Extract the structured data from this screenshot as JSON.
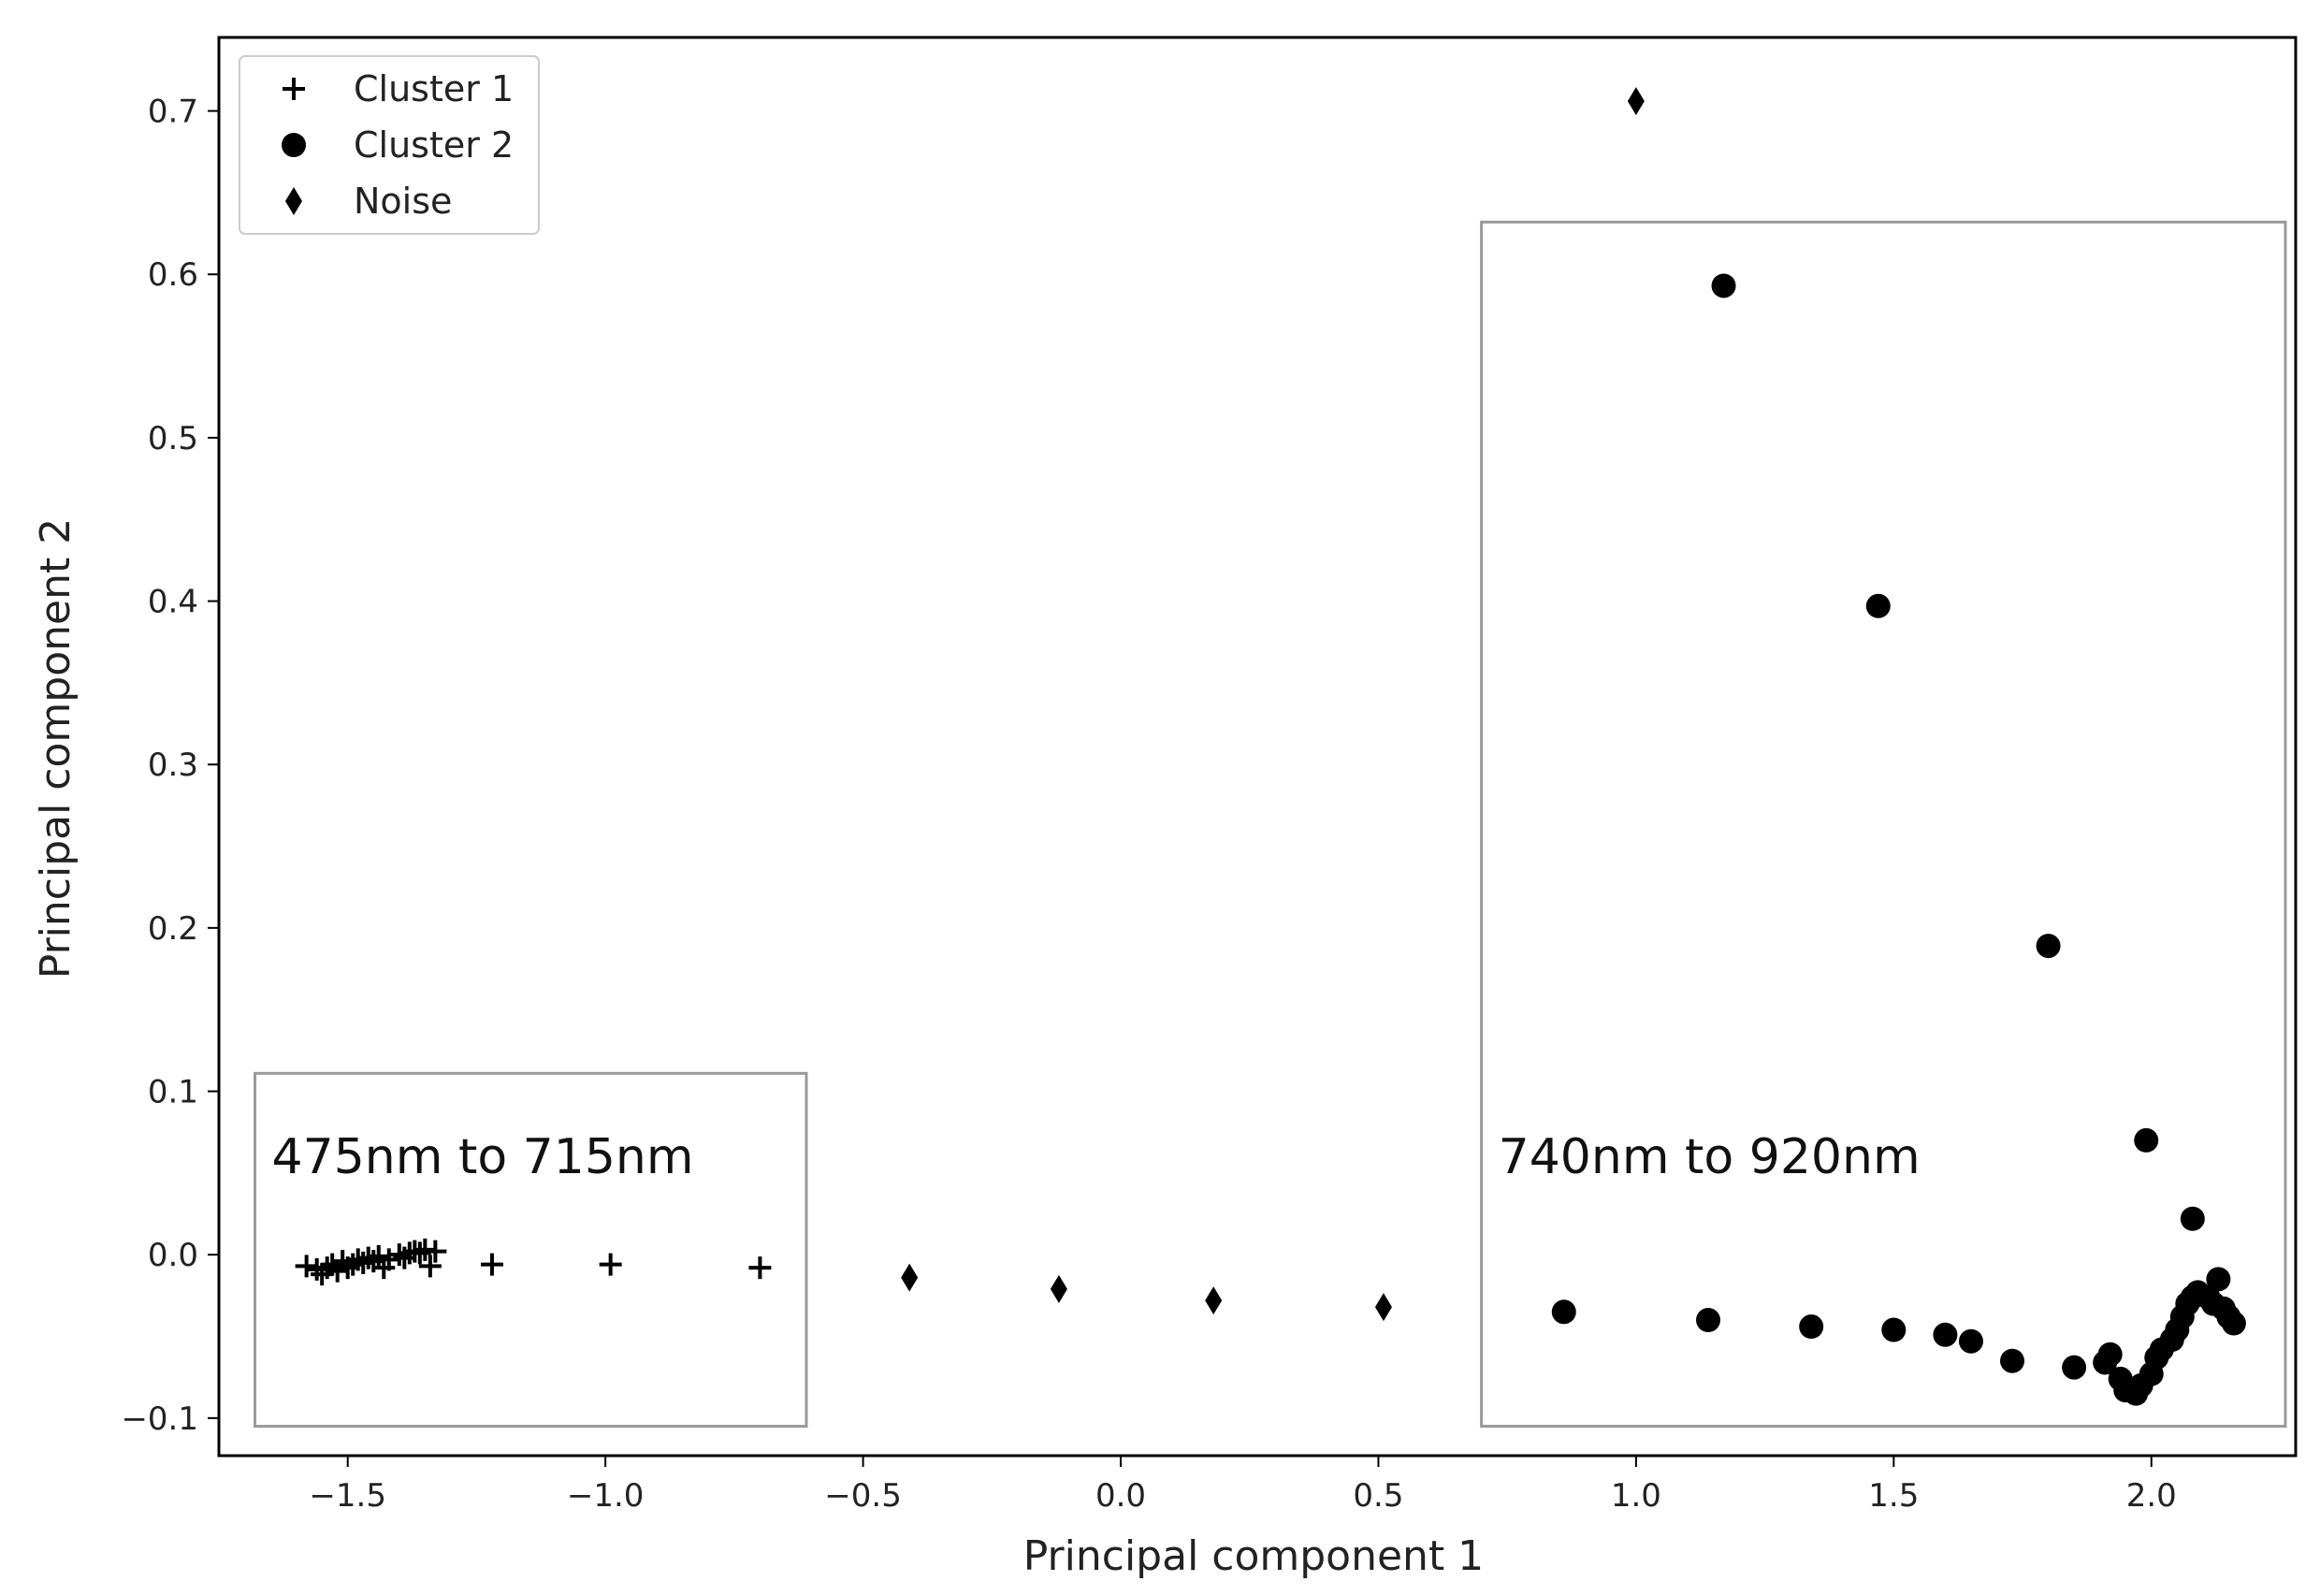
{
  "chart_data": {
    "type": "scatter",
    "title": "",
    "xlabel": "Principal component 1",
    "ylabel": "Principal component 2",
    "xlim": [
      -1.75,
      2.28
    ],
    "ylim": [
      -0.123,
      0.745
    ],
    "xticks": [
      {
        "value": -1.5,
        "label": "−1.5"
      },
      {
        "value": -1.0,
        "label": "−1.0"
      },
      {
        "value": -0.5,
        "label": "−0.5"
      },
      {
        "value": 0.0,
        "label": "0.0"
      },
      {
        "value": 0.5,
        "label": "0.5"
      },
      {
        "value": 1.0,
        "label": "1.0"
      },
      {
        "value": 1.5,
        "label": "1.5"
      },
      {
        "value": 2.0,
        "label": "2.0"
      }
    ],
    "yticks": [
      {
        "value": -0.1,
        "label": "−0.1"
      },
      {
        "value": 0.0,
        "label": "0.0"
      },
      {
        "value": 0.1,
        "label": "0.1"
      },
      {
        "value": 0.2,
        "label": "0.2"
      },
      {
        "value": 0.3,
        "label": "0.3"
      },
      {
        "value": 0.4,
        "label": "0.4"
      },
      {
        "value": 0.5,
        "label": "0.5"
      },
      {
        "value": 0.6,
        "label": "0.6"
      },
      {
        "value": 0.7,
        "label": "0.7"
      }
    ],
    "grid": false,
    "legend": {
      "placement": "upper-left",
      "entries": [
        {
          "label": "Cluster 1",
          "marker": "plus"
        },
        {
          "label": "Cluster 2",
          "marker": "circle"
        },
        {
          "label": "Noise",
          "marker": "thin-diamond"
        }
      ]
    },
    "series": [
      {
        "name": "Cluster 1",
        "marker": "plus",
        "color": "#000000",
        "points": [
          [
            -1.58,
            -0.007
          ],
          [
            -1.56,
            -0.009
          ],
          [
            -1.55,
            -0.012
          ],
          [
            -1.54,
            -0.008
          ],
          [
            -1.53,
            -0.006
          ],
          [
            -1.52,
            -0.01
          ],
          [
            -1.51,
            -0.004
          ],
          [
            -1.5,
            -0.008
          ],
          [
            -1.49,
            -0.006
          ],
          [
            -1.48,
            -0.003
          ],
          [
            -1.47,
            -0.005
          ],
          [
            -1.46,
            -0.002
          ],
          [
            -1.45,
            -0.004
          ],
          [
            -1.44,
            -0.001
          ],
          [
            -1.43,
            -0.008
          ],
          [
            -1.42,
            -0.003
          ],
          [
            -1.4,
            0.0
          ],
          [
            -1.39,
            -0.002
          ],
          [
            -1.38,
            0.001
          ],
          [
            -1.37,
            0.002
          ],
          [
            -1.36,
            0.001
          ],
          [
            -1.35,
            0.003
          ],
          [
            -1.34,
            -0.007
          ],
          [
            -1.33,
            0.002
          ],
          [
            -1.22,
            -0.006
          ],
          [
            -0.99,
            -0.006
          ],
          [
            -0.7,
            -0.008
          ]
        ]
      },
      {
        "name": "Cluster 2",
        "marker": "circle",
        "color": "#000000",
        "points": [
          [
            1.17,
            0.593
          ],
          [
            1.47,
            0.397
          ],
          [
            1.8,
            0.189
          ],
          [
            1.99,
            0.07
          ],
          [
            2.08,
            0.022
          ],
          [
            0.86,
            -0.035
          ],
          [
            1.14,
            -0.04
          ],
          [
            1.34,
            -0.044
          ],
          [
            1.5,
            -0.046
          ],
          [
            1.6,
            -0.049
          ],
          [
            1.65,
            -0.053
          ],
          [
            1.73,
            -0.065
          ],
          [
            1.85,
            -0.069
          ],
          [
            1.91,
            -0.066
          ],
          [
            1.92,
            -0.061
          ],
          [
            1.94,
            -0.076
          ],
          [
            1.95,
            -0.083
          ],
          [
            1.97,
            -0.085
          ],
          [
            1.98,
            -0.08
          ],
          [
            2.0,
            -0.073
          ],
          [
            2.01,
            -0.063
          ],
          [
            2.02,
            -0.058
          ],
          [
            2.04,
            -0.052
          ],
          [
            2.05,
            -0.046
          ],
          [
            2.06,
            -0.038
          ],
          [
            2.07,
            -0.03
          ],
          [
            2.08,
            -0.026
          ],
          [
            2.09,
            -0.023
          ],
          [
            2.11,
            -0.026
          ],
          [
            2.12,
            -0.03
          ],
          [
            2.13,
            -0.015
          ],
          [
            2.14,
            -0.033
          ],
          [
            2.15,
            -0.038
          ],
          [
            2.16,
            -0.042
          ]
        ]
      },
      {
        "name": "Noise",
        "marker": "thin-diamond",
        "color": "#000000",
        "points": [
          [
            1.0,
            0.706
          ],
          [
            -0.41,
            -0.014
          ],
          [
            -0.12,
            -0.021
          ],
          [
            0.18,
            -0.028
          ],
          [
            0.51,
            -0.032
          ]
        ]
      }
    ],
    "annotations": [
      {
        "text": "475nm to 715nm",
        "box": {
          "x": [
            -1.68,
            -0.61
          ],
          "y": [
            -0.105,
            0.111
          ]
        }
      },
      {
        "text": "740nm to 920nm",
        "box": {
          "x": [
            0.7,
            2.26
          ],
          "y": [
            -0.105,
            0.632
          ]
        }
      }
    ]
  }
}
